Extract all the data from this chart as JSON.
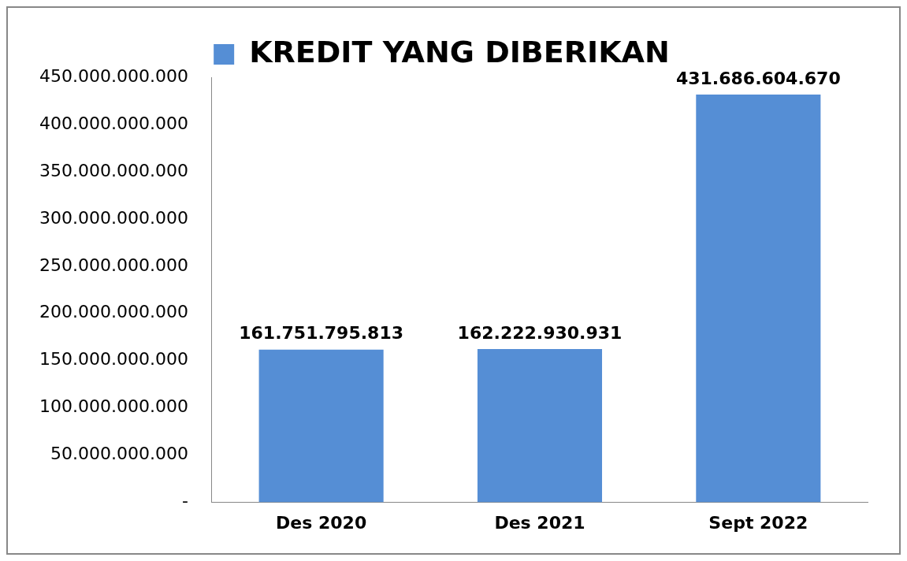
{
  "chart_data": {
    "type": "bar",
    "categories": [
      "Des 2020",
      "Des 2021",
      "Sept 2022"
    ],
    "series": [
      {
        "name": "KREDIT YANG DIBERIKAN",
        "color": "#558ed5",
        "values": [
          161751795813,
          162222930931,
          431686604670
        ],
        "value_labels": [
          "161.751.795.813",
          "162.222.930.931",
          "431.686.604.670"
        ]
      }
    ],
    "ylim": [
      0,
      450000000000
    ],
    "yticks": [
      {
        "value": 0,
        "label": "-"
      },
      {
        "value": 50000000000,
        "label": "50.000.000.000"
      },
      {
        "value": 100000000000,
        "label": "100.000.000.000"
      },
      {
        "value": 150000000000,
        "label": "150.000.000.000"
      },
      {
        "value": 200000000000,
        "label": "200.000.000.000"
      },
      {
        "value": 250000000000,
        "label": "250.000.000.000"
      },
      {
        "value": 300000000000,
        "label": "300.000.000.000"
      },
      {
        "value": 350000000000,
        "label": "350.000.000.000"
      },
      {
        "value": 400000000000,
        "label": "400.000.000.000"
      },
      {
        "value": 450000000000,
        "label": "450.000.000.000"
      }
    ],
    "grid": false,
    "legend": "top"
  }
}
